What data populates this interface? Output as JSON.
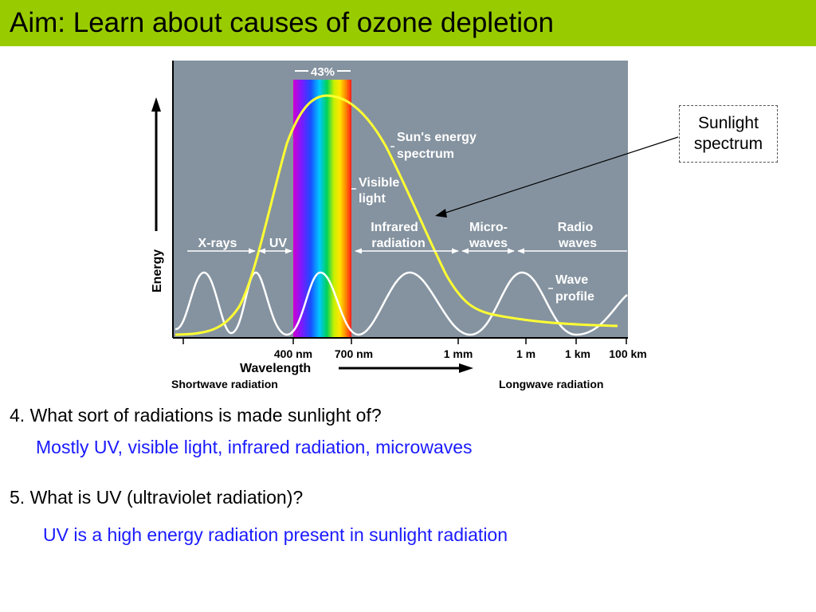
{
  "title": "Aim: Learn about causes of ozone depletion",
  "diagram": {
    "percent_label": "43%",
    "y_axis_label": "Energy",
    "band_labels": {
      "xrays": "X-rays",
      "uv": "UV",
      "infrared_line1": "Infrared",
      "infrared_line2": "radiation",
      "micro_line1": "Micro-",
      "micro_line2": "waves",
      "radio_line1": "Radio",
      "radio_line2": "waves"
    },
    "annotations": {
      "sun_line1": "Sun's energy",
      "sun_line2": "spectrum",
      "visible_line1": "Visible",
      "visible_line2": "light",
      "wave_line1": "Wave",
      "wave_line2": "profile"
    },
    "ticks": [
      "400 nm",
      "700 nm",
      "1 mm",
      "1 m",
      "1 km",
      "100 km"
    ],
    "x_axis_label": "Wavelength",
    "shortwave_label": "Shortwave radiation",
    "longwave_label": "Longwave radiation",
    "colors": {
      "panel": "#8593a0",
      "curve": "#ffff33",
      "wave": "#ffffff",
      "title_bar": "#99cc00",
      "answer": "#1a1aff"
    }
  },
  "callout": {
    "line1": "Sunlight",
    "line2": "spectrum"
  },
  "questions": [
    {
      "question": "4. What sort of radiations is made sunlight of?",
      "answer": "Mostly UV, visible light, infrared radiation, microwaves"
    },
    {
      "question": "5. What is UV (ultraviolet radiation)?",
      "answer": "UV is a high energy radiation present in sunlight radiation"
    }
  ]
}
